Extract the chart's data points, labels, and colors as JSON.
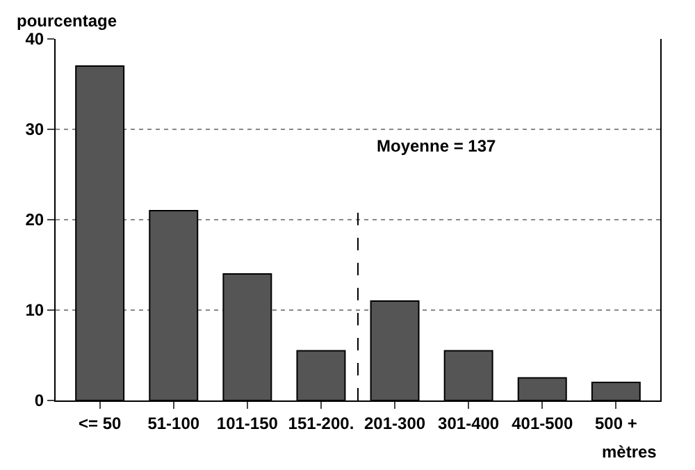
{
  "chart_data": {
    "type": "bar",
    "ylabel": "pourcentage",
    "xlabel": "mètres",
    "categories": [
      "<= 50",
      "51-100",
      "101-150",
      "151-200.",
      "201-300",
      "301-400",
      "401-500",
      "500 +"
    ],
    "values": [
      37,
      21,
      14,
      5.5,
      11,
      5.5,
      2.5,
      2
    ],
    "color": "#555555",
    "ylim": [
      0,
      40
    ],
    "yticks": [
      0,
      10,
      20,
      30,
      40
    ],
    "grid": "y",
    "annotations": [
      "Moyenne = 137"
    ]
  }
}
